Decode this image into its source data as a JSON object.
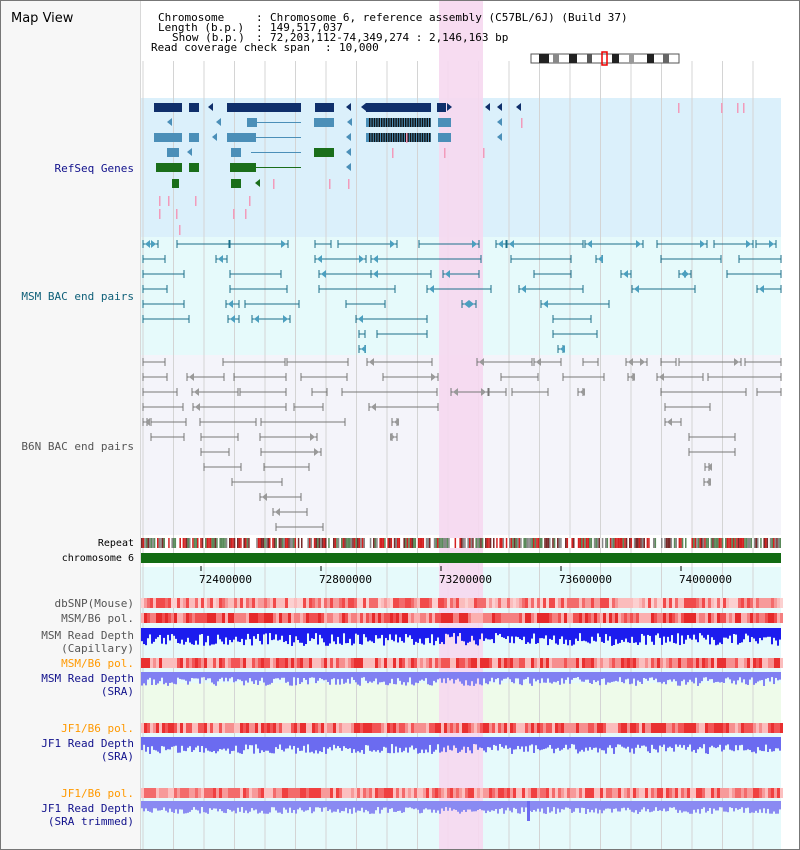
{
  "app_title": "Map View",
  "info": {
    "chromosome_key": "Chromosome",
    "chromosome_val": "Chromosome 6, reference assembly (C57BL/6J) (Build 37)",
    "length_key": "Length (b.p.)",
    "length_val": "149,517,037",
    "show_key": "Show (b.p.)",
    "show_val": "72,203,112-74,349,274 : 2,146,163 bp",
    "coverage_key": "Read coverage check span",
    "coverage_val": "10,000"
  },
  "tracks": {
    "refseq": "RefSeq Genes",
    "msm_bac": "MSM BAC end pairs",
    "b6n_bac": "B6N BAC end pairs",
    "repeat": "Repeat",
    "chromosome": "chromosome 6",
    "dbsnp": "dbSNP(Mouse)",
    "msm_b6_pol1": "MSM/B6 pol.",
    "msm_depth_cap_1": "MSM Read Depth",
    "msm_depth_cap_2": "(Capillary)",
    "msm_b6_pol2": "MSM/B6 pol.",
    "msm_depth_sra_1": "MSM Read Depth",
    "msm_depth_sra_2": "(SRA)",
    "jf1_b6_pol1": "JF1/B6 pol.",
    "jf1_depth_sra_1": "JF1 Read Depth",
    "jf1_depth_sra_2": "(SRA)",
    "jf1_b6_pol2": "JF1/B6 pol.",
    "jf1_depth_trim_1": "JF1 Read Depth",
    "jf1_depth_trim_2": "(SRA trimmed)"
  },
  "axis": {
    "ticks": [
      "72400000",
      "72800000",
      "73200000",
      "73600000",
      "74000000"
    ]
  },
  "colors": {
    "refseq_bg": "#dbf0fb",
    "msm_bg": "#e6fafb",
    "b6n_bg": "#f4f4fa",
    "highlight": "#f6d8f0",
    "gene_navy": "#0f2f6b",
    "gene_teal": "#4b8fb8",
    "gene_green": "#1a6e1a",
    "bac_msm": "#1c6f8a",
    "bac_b6n": "#777777",
    "label_blue": "#12128c",
    "label_orange": "#ff9900",
    "label_msm_bac": "#0e5f78"
  }
}
